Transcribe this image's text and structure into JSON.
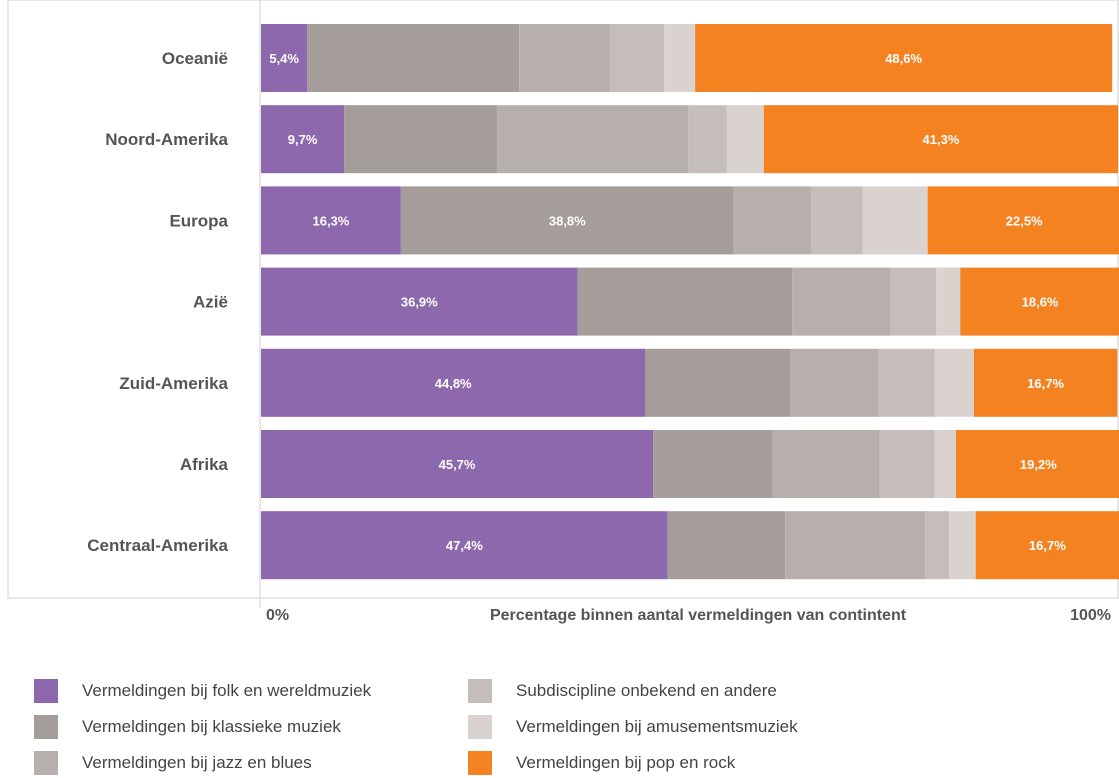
{
  "chart_data": {
    "type": "bar",
    "orientation": "horizontal",
    "stacked": true,
    "title": "",
    "xlabel": "Percentage binnen aantal vermeldingen van contintent",
    "ylabel": "",
    "xlim": [
      0,
      100
    ],
    "x_tick_labels": [
      "0%",
      "100%"
    ],
    "grid": false,
    "legend_position": "bottom",
    "categories": [
      "Oceanië",
      "Noord-Amerika",
      "Europa",
      "Azië",
      "Zuid-Amerika",
      "Afrika",
      "Centraal-Amerika"
    ],
    "series": [
      {
        "name": "Vermeldingen bij folk en wereldmuziek",
        "color": "#8e68ad",
        "values": [
          5.4,
          9.7,
          16.3,
          36.9,
          44.8,
          45.7,
          47.4
        ],
        "labels": [
          "5,4%",
          "9,7%",
          "16,3%",
          "36,9%",
          "44,8%",
          "45,7%",
          "47,4%"
        ]
      },
      {
        "name": "Vermeldingen bij klassieke muziek",
        "color": "#a59d99",
        "values": [
          24.7,
          17.8,
          38.8,
          25.0,
          16.9,
          13.9,
          13.7
        ],
        "labels": [
          "",
          "",
          "38,8%",
          "",
          "",
          "",
          ""
        ]
      },
      {
        "name": "Vermeldingen bij jazz en blues",
        "color": "#b7afab",
        "values": [
          10.6,
          22.3,
          9.0,
          11.5,
          10.3,
          12.5,
          16.3
        ],
        "labels": [
          "",
          "",
          "",
          "",
          "",
          "",
          ""
        ]
      },
      {
        "name": "Subdiscipline onbekend en andere",
        "color": "#c5bdb9",
        "values": [
          6.3,
          4.5,
          6.0,
          5.3,
          6.5,
          6.4,
          2.8
        ],
        "labels": [
          "",
          "",
          "",
          "",
          "",
          "",
          ""
        ]
      },
      {
        "name": "Vermeldingen bij amusementsmuziek",
        "color": "#d9d2cf",
        "values": [
          3.6,
          4.3,
          7.6,
          2.8,
          4.6,
          2.5,
          3.1
        ],
        "labels": [
          "",
          "",
          "",
          "",
          "",
          "",
          ""
        ]
      },
      {
        "name": "Vermeldingen bij pop en rock",
        "color": "#f58220",
        "values": [
          48.6,
          41.3,
          22.5,
          18.6,
          16.7,
          19.2,
          16.7
        ],
        "labels": [
          "48,6%",
          "41,3%",
          "22,5%",
          "18,6%",
          "16,7%",
          "19,2%",
          "16,7%"
        ]
      }
    ]
  },
  "legend": {
    "items": [
      {
        "label": "Vermeldingen bij folk en wereldmuziek",
        "color": "#8e68ad"
      },
      {
        "label": "Vermeldingen bij klassieke muziek",
        "color": "#a59d99"
      },
      {
        "label": "Vermeldingen bij jazz en blues",
        "color": "#b7afab"
      },
      {
        "label": "Subdiscipline onbekend en andere",
        "color": "#c5bdb9"
      },
      {
        "label": "Vermeldingen bij amusementsmuziek",
        "color": "#d9d2cf"
      },
      {
        "label": "Vermeldingen bij pop en rock",
        "color": "#f58220"
      }
    ]
  }
}
